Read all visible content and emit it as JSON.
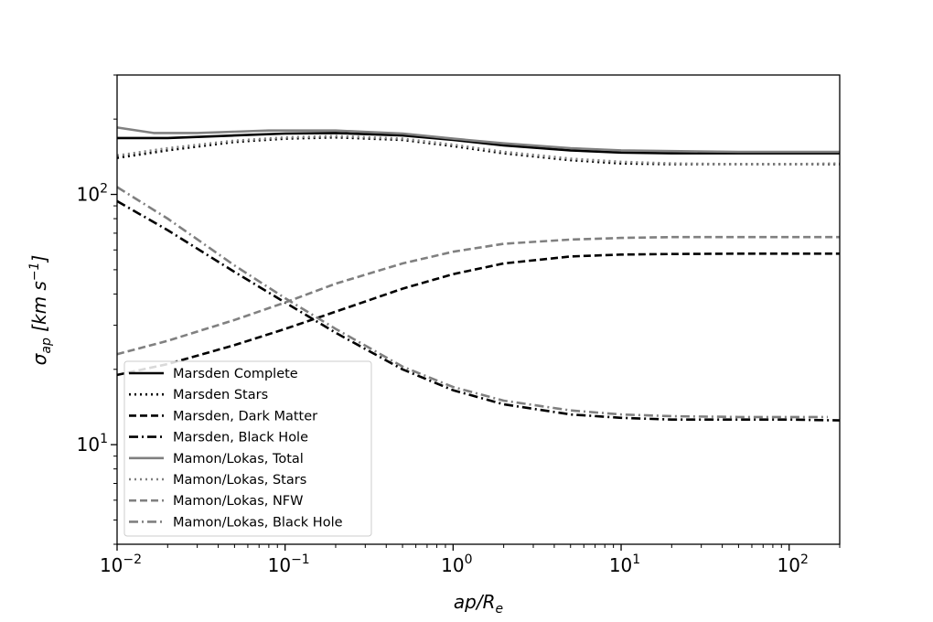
{
  "chart_data": {
    "type": "line",
    "xscale": "log",
    "yscale": "log",
    "xlim": [
      0.01,
      200
    ],
    "ylim": [
      4,
      300
    ],
    "xlabel": "ap/R_e",
    "ylabel": "σ_ap [km s^-1]",
    "xlabel_parts": {
      "main": "ap/R",
      "sub": "e"
    },
    "ylabel_parts": {
      "sym": "σ",
      "sub": "ap",
      "unit": " [km s",
      "exp": "−1",
      "close": "]"
    },
    "xticks": [
      {
        "value": 0.01,
        "base": "10",
        "exp": "−2"
      },
      {
        "value": 0.1,
        "base": "10",
        "exp": "−1"
      },
      {
        "value": 1,
        "base": "10",
        "exp": "0"
      },
      {
        "value": 10,
        "base": "10",
        "exp": "1"
      },
      {
        "value": 100,
        "base": "10",
        "exp": "2"
      }
    ],
    "yticks": [
      {
        "value": 10,
        "base": "10",
        "exp": "1"
      },
      {
        "value": 100,
        "base": "10",
        "exp": "2"
      }
    ],
    "legend_position": "lower-left",
    "grid": false,
    "series": [
      {
        "name": "Marsden Complete",
        "color": "#000000",
        "dash": "solid",
        "x": [
          0.01,
          0.02,
          0.05,
          0.1,
          0.2,
          0.5,
          1,
          2,
          5,
          10,
          20,
          50,
          100,
          200
        ],
        "y": [
          168,
          168,
          172,
          175,
          176,
          172,
          165,
          157,
          150,
          147,
          146,
          146,
          146,
          146
        ]
      },
      {
        "name": "Marsden Stars",
        "color": "#000000",
        "dash": "dotted",
        "x": [
          0.01,
          0.02,
          0.05,
          0.1,
          0.2,
          0.5,
          1,
          2,
          5,
          10,
          20,
          50,
          100,
          200
        ],
        "y": [
          140,
          150,
          162,
          167,
          169,
          165,
          156,
          146,
          137,
          133,
          132,
          132,
          132,
          132
        ]
      },
      {
        "name": "Marsden, Dark Matter",
        "color": "#000000",
        "dash": "dashed",
        "x": [
          0.01,
          0.02,
          0.05,
          0.1,
          0.2,
          0.5,
          1,
          2,
          5,
          10,
          20,
          50,
          100,
          200
        ],
        "y": [
          19,
          21,
          25,
          29,
          34,
          42,
          48,
          53,
          56.5,
          57.5,
          57.8,
          58,
          58,
          58
        ]
      },
      {
        "name": "Marsden, Black Hole",
        "color": "#000000",
        "dash": "dashdot",
        "x": [
          0.01,
          0.02,
          0.05,
          0.1,
          0.2,
          0.5,
          1,
          2,
          5,
          10,
          20,
          50,
          100,
          200
        ],
        "y": [
          94,
          72,
          49,
          37,
          28,
          20,
          16.5,
          14.5,
          13.2,
          12.8,
          12.6,
          12.6,
          12.6,
          12.5
        ]
      },
      {
        "name": "Mamon/Lokas, Total",
        "color": "#808080",
        "dash": "solid",
        "x": [
          0.01,
          0.0165,
          0.03,
          0.05,
          0.08,
          0.1,
          0.2,
          0.5,
          1,
          2,
          5,
          10,
          20,
          50,
          100,
          200
        ],
        "y": [
          185,
          176,
          176,
          178,
          180,
          180,
          180,
          175,
          167,
          160,
          153,
          150,
          149,
          148,
          148,
          148
        ]
      },
      {
        "name": "Mamon/Lokas, Stars",
        "color": "#808080",
        "dash": "dotted",
        "x": [
          0.01,
          0.02,
          0.05,
          0.1,
          0.2,
          0.5,
          1,
          2,
          5,
          10,
          20,
          50,
          100,
          200
        ],
        "y": [
          143,
          153,
          164,
          169,
          171,
          167,
          158,
          148,
          139,
          135,
          133,
          132,
          132,
          133
        ]
      },
      {
        "name": "Mamon/Lokas, NFW",
        "color": "#808080",
        "dash": "dashed",
        "x": [
          0.01,
          0.02,
          0.05,
          0.1,
          0.2,
          0.5,
          1,
          2,
          5,
          10,
          20,
          50,
          100,
          200
        ],
        "y": [
          23,
          26,
          31.5,
          37,
          44,
          53,
          59,
          63.5,
          66,
          67,
          67.5,
          67.5,
          67.5,
          67.5
        ]
      },
      {
        "name": "Mamon/Lokas, Black Hole",
        "color": "#808080",
        "dash": "dashdot",
        "x": [
          0.01,
          0.02,
          0.05,
          0.1,
          0.2,
          0.5,
          1,
          2,
          5,
          10,
          20,
          50,
          100,
          170
        ],
        "y": [
          107,
          80,
          52,
          38.5,
          29,
          20.5,
          17,
          15,
          13.7,
          13.2,
          13,
          12.9,
          12.9,
          12.9
        ]
      }
    ]
  }
}
